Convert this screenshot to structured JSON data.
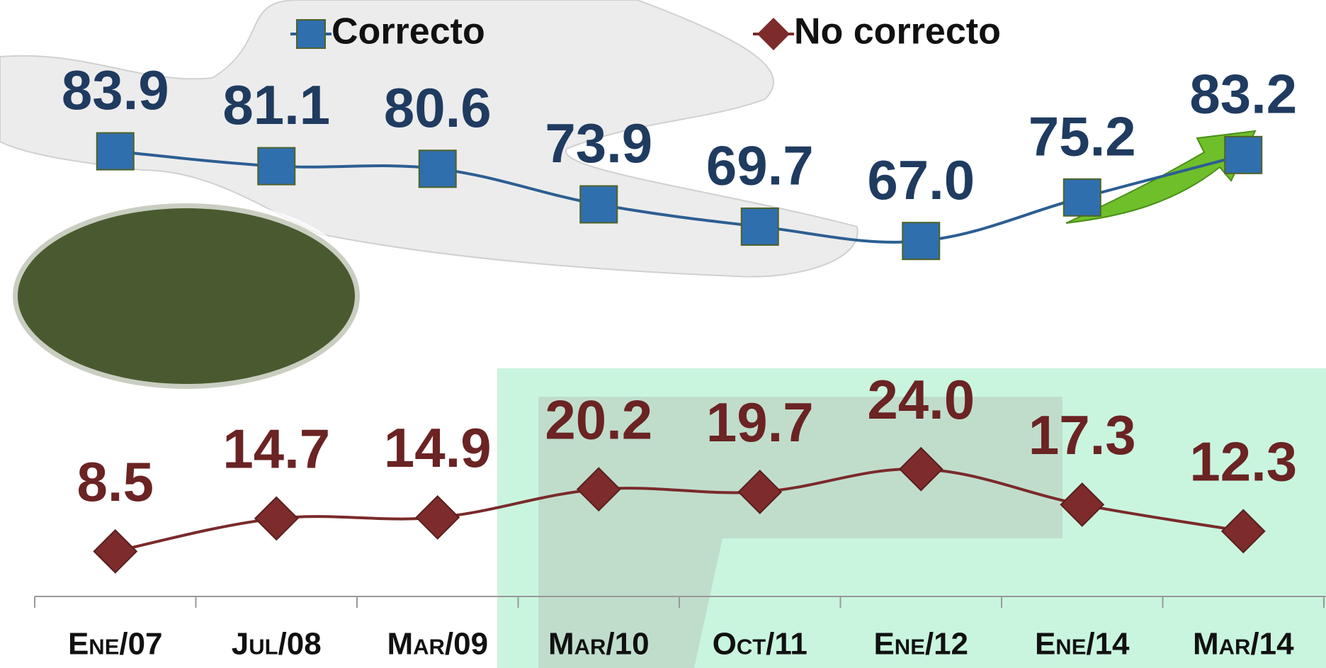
{
  "chart_data": {
    "type": "line",
    "categories": [
      "Ene/07",
      "Jul/08",
      "Mar/09",
      "Mar/10",
      "Oct/11",
      "Ene/12",
      "Ene/14",
      "Mar/14"
    ],
    "series": [
      {
        "name": "Correcto",
        "color": "#2c5e93",
        "marker_color": "#2f6fae",
        "marker": "square",
        "values": [
          83.9,
          81.1,
          80.6,
          73.9,
          69.7,
          67.0,
          75.2,
          83.2
        ],
        "value_labels": [
          "83.9",
          "81.1",
          "80.6",
          "73.9",
          "69.7",
          "67.0",
          "75.2",
          "83.2"
        ],
        "label_color": "#1f3b60"
      },
      {
        "name": "No correcto",
        "color": "#7a2a2a",
        "marker_color": "#7d2b2b",
        "marker": "diamond",
        "values": [
          8.5,
          14.7,
          14.9,
          20.2,
          19.7,
          24.0,
          17.3,
          12.3
        ],
        "value_labels": [
          "8.5",
          "14.7",
          "14.9",
          "20.2",
          "19.7",
          "24.0",
          "17.3",
          "12.3"
        ],
        "label_color": "#6b2323"
      }
    ],
    "ylim": [
      0,
      112
    ]
  }
}
